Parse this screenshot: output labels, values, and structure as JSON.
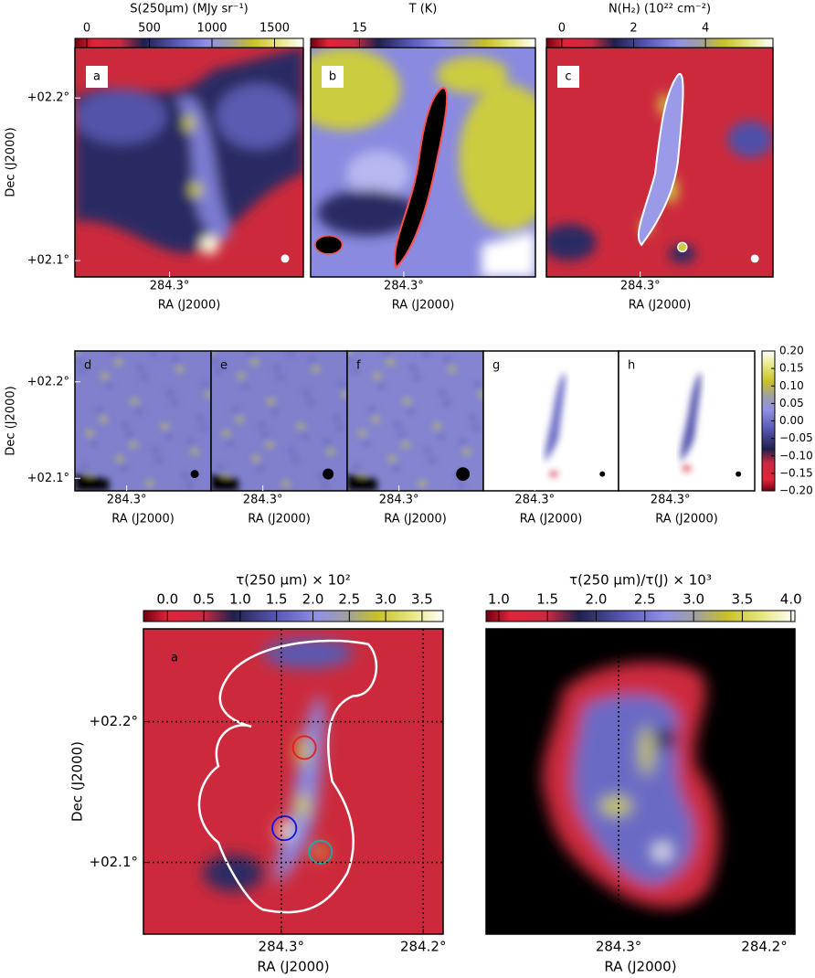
{
  "chart_data": [
    {
      "type": "heatmap",
      "panel": "a",
      "colorbar": {
        "label": "S(250μm) (MJy sr⁻¹)",
        "lim": [
          -95,
          1730
        ],
        "ticks": [
          0,
          500,
          1000,
          1500
        ]
      },
      "xlim": [
        284.358,
        284.218
      ],
      "ylim": [
        2.09,
        2.231
      ],
      "xticks": [
        {
          "value": 284.3,
          "label": "284.3°"
        }
      ],
      "yticks": [
        {
          "value": 2.1,
          "label": "+02.1°"
        },
        {
          "value": 2.2,
          "label": "+02.2°"
        }
      ],
      "xlabel": "RA (J2000)",
      "ylabel": "Dec (J2000)"
    },
    {
      "type": "heatmap",
      "panel": "b",
      "colorbar": {
        "label": "T (K)",
        "lim": [
          14,
          18.6
        ],
        "ticks": [
          15
        ]
      },
      "xlim": [
        284.358,
        284.218
      ],
      "ylim": [
        2.09,
        2.231
      ],
      "xticks": [
        {
          "value": 284.3,
          "label": "284.3°"
        }
      ],
      "xlabel": "RA (J2000)"
    },
    {
      "type": "heatmap",
      "panel": "c",
      "colorbar": {
        "label": "N(H₂) (10²² cm⁻²)",
        "lim": [
          -0.43,
          5.88
        ],
        "ticks": [
          0,
          2,
          4
        ]
      },
      "xlim": [
        284.358,
        284.218
      ],
      "ylim": [
        2.09,
        2.231
      ],
      "xticks": [
        {
          "value": 284.3,
          "label": "284.3°"
        }
      ],
      "xlabel": "RA (J2000)"
    },
    {
      "type": "heatmap",
      "panel": "d",
      "xlim": [
        284.354,
        284.212
      ],
      "ylim": [
        2.087,
        2.232
      ],
      "xticks": [
        {
          "value": 284.3,
          "label": "284.3°"
        }
      ],
      "yticks": [
        {
          "value": 2.1,
          "label": "+02.1°"
        },
        {
          "value": 2.2,
          "label": "+02.2°"
        }
      ],
      "xlabel": "RA (J2000)",
      "ylabel": "Dec (J2000)"
    },
    {
      "type": "heatmap",
      "panel": "e",
      "xlim": [
        284.354,
        284.212
      ],
      "ylim": [
        2.087,
        2.232
      ],
      "xticks": [
        {
          "value": 284.3,
          "label": "284.3°"
        }
      ],
      "xlabel": "RA (J2000)"
    },
    {
      "type": "heatmap",
      "panel": "f",
      "xlim": [
        284.354,
        284.212
      ],
      "ylim": [
        2.087,
        2.232
      ],
      "xticks": [
        {
          "value": 284.3,
          "label": "284.3°"
        }
      ],
      "xlabel": "RA (J2000)"
    },
    {
      "type": "heatmap",
      "panel": "g",
      "xlim": [
        284.354,
        284.212
      ],
      "ylim": [
        2.087,
        2.232
      ],
      "xticks": [
        {
          "value": 284.3,
          "label": "284.3°"
        }
      ],
      "xlabel": "RA (J2000)"
    },
    {
      "type": "heatmap",
      "panel": "h",
      "xlim": [
        284.354,
        284.212
      ],
      "ylim": [
        2.087,
        2.232
      ],
      "xticks": [
        {
          "value": 284.3,
          "label": "284.3°"
        }
      ],
      "xlabel": "RA (J2000)",
      "colorbar": {
        "lim": [
          -0.2,
          0.2
        ],
        "ticks": [
          {
            "value": 0.2,
            "label": "0.20"
          },
          {
            "value": 0.15,
            "label": "0.15"
          },
          {
            "value": 0.1,
            "label": "0.10"
          },
          {
            "value": 0.05,
            "label": "0.05"
          },
          {
            "value": 0,
            "label": "0.00"
          },
          {
            "value": -0.05,
            "label": "−0.05"
          },
          {
            "value": -0.1,
            "label": "−0.10"
          },
          {
            "value": -0.15,
            "label": "−0.15"
          },
          {
            "value": -0.2,
            "label": "−0.20"
          }
        ]
      }
    },
    {
      "type": "heatmap",
      "panel": "a",
      "colorbar": {
        "label": "τ(250 μm) × 10²",
        "lim": [
          -0.33,
          3.79
        ],
        "ticks": [
          {
            "value": 0,
            "label": "0.0"
          },
          {
            "value": 0.5,
            "label": "0.5"
          },
          {
            "value": 1,
            "label": "1.0"
          },
          {
            "value": 1.5,
            "label": "1.5"
          },
          {
            "value": 2,
            "label": "2.0"
          },
          {
            "value": 2.5,
            "label": "2.5"
          },
          {
            "value": 3,
            "label": "3.0"
          },
          {
            "value": 3.5,
            "label": "3.5"
          }
        ]
      },
      "xlim": [
        284.397,
        284.186
      ],
      "ylim": [
        2.049,
        2.266
      ],
      "xticks": [
        {
          "value": 284.3,
          "label": "284.3°"
        },
        {
          "value": 284.2,
          "label": "284.2°"
        }
      ],
      "yticks": [
        {
          "value": 2.1,
          "label": "+02.1°"
        },
        {
          "value": 2.2,
          "label": "+02.2°"
        }
      ],
      "xlabel": "RA (J2000)",
      "ylabel": "Dec (J2000)",
      "grid": true
    },
    {
      "type": "heatmap",
      "colorbar": {
        "label": "τ(250 μm)/τ(J) × 10³",
        "lim": [
          0.87,
          4.04
        ],
        "ticks": [
          {
            "value": 1,
            "label": "1.0"
          },
          {
            "value": 1.5,
            "label": "1.5"
          },
          {
            "value": 2,
            "label": "2.0"
          },
          {
            "value": 2.5,
            "label": "2.5"
          },
          {
            "value": 3,
            "label": "3.0"
          },
          {
            "value": 3.5,
            "label": "3.5"
          },
          {
            "value": 4,
            "label": "4.0"
          }
        ]
      },
      "xlim": [
        284.391,
        284.179
      ],
      "ylim": [
        2.049,
        2.266
      ],
      "xticks": [
        {
          "value": 284.3,
          "label": "284.3°"
        },
        {
          "value": 284.2,
          "label": "284.2°"
        }
      ],
      "xlabel": "RA (J2000)",
      "grid": true
    }
  ]
}
